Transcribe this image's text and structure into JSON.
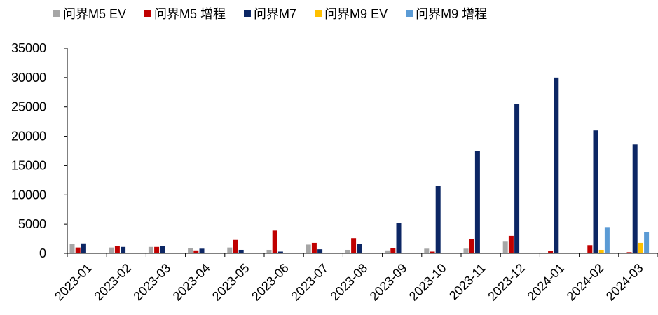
{
  "chart_data": {
    "type": "bar",
    "title": "",
    "xlabel": "",
    "ylabel": "",
    "ylim": [
      0,
      35000
    ],
    "yticks": [
      0,
      5000,
      10000,
      15000,
      20000,
      25000,
      30000,
      35000
    ],
    "ytick_labels": [
      "0",
      "5000",
      "10000",
      "15000",
      "20000",
      "25000",
      "30000",
      "35000"
    ],
    "grid": false,
    "legend_position": "top",
    "categories": [
      "2023-01",
      "2023-02",
      "2023-03",
      "2023-04",
      "2023-05",
      "2023-06",
      "2023-07",
      "2023-08",
      "2023-09",
      "2023-10",
      "2023-11",
      "2023-12",
      "2024-01",
      "2024-02",
      "2024-03"
    ],
    "series": [
      {
        "name": "问界M5 EV",
        "color": "#a6a6a6",
        "values": [
          1600,
          1000,
          1100,
          900,
          1000,
          600,
          1500,
          600,
          500,
          800,
          800,
          2000,
          100,
          100,
          100
        ]
      },
      {
        "name": "问界M5 增程",
        "color": "#c00000",
        "values": [
          1000,
          1200,
          1100,
          500,
          2300,
          3900,
          1800,
          2600,
          900,
          300,
          2400,
          3000,
          400,
          1400,
          200
        ]
      },
      {
        "name": "问界M7",
        "color": "#0c2664",
        "values": [
          1700,
          1100,
          1300,
          800,
          600,
          300,
          700,
          1600,
          5200,
          11500,
          17500,
          25500,
          30000,
          21000,
          18600
        ]
      },
      {
        "name": "问界M9 EV",
        "color": "#ffc000",
        "values": [
          0,
          0,
          0,
          0,
          0,
          0,
          0,
          0,
          0,
          0,
          0,
          0,
          0,
          600,
          1800
        ]
      },
      {
        "name": "问界M9 增程",
        "color": "#5b9bd5",
        "values": [
          0,
          0,
          0,
          0,
          0,
          0,
          0,
          0,
          0,
          0,
          0,
          0,
          0,
          4500,
          3600
        ]
      }
    ]
  }
}
